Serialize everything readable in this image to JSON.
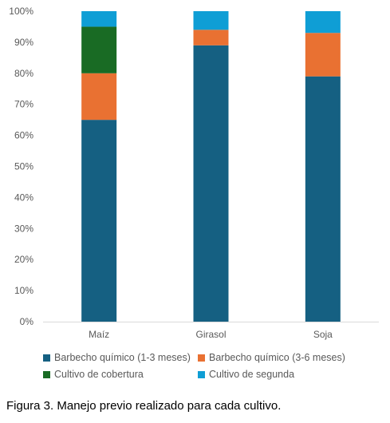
{
  "chart_data": {
    "type": "bar",
    "stacked": true,
    "categories": [
      "Maíz",
      "Girasol",
      "Soja"
    ],
    "series": [
      {
        "name": "Barbecho químico (1-3 meses)",
        "color": "#156082",
        "values": [
          65,
          89,
          79
        ]
      },
      {
        "name": "Barbecho químico (3-6 meses)",
        "color": "#E97132",
        "values": [
          15,
          5,
          14
        ]
      },
      {
        "name": "Cultivo de cobertura",
        "color": "#196B24",
        "values": [
          15,
          0,
          0
        ]
      },
      {
        "name": "Cultivo de segunda",
        "color": "#0F9ED5",
        "values": [
          5,
          6,
          7
        ]
      }
    ],
    "yticks": [
      "0%",
      "10%",
      "20%",
      "30%",
      "40%",
      "50%",
      "60%",
      "70%",
      "80%",
      "90%",
      "100%"
    ],
    "ylim": [
      0,
      100
    ],
    "grid": false,
    "legend_position": "bottom"
  },
  "caption": "Figura 3. Manejo previo realizado para cada cultivo."
}
